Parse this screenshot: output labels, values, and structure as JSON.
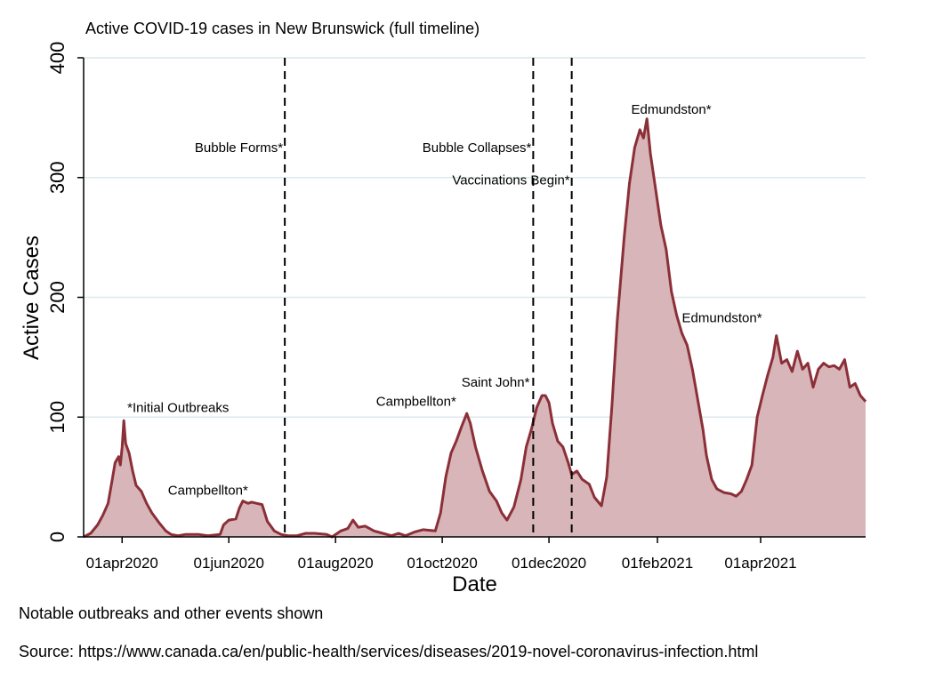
{
  "chart_data": {
    "type": "area",
    "title": "Active COVID-19 cases in New Brunswick (full timeline)",
    "xlabel": "Date",
    "ylabel": "Active Cases",
    "ylim": [
      0,
      400
    ],
    "yticks": [
      0,
      100,
      200,
      300,
      400
    ],
    "xlim": [
      "2020-03-10",
      "2021-05-31"
    ],
    "xticks": [
      {
        "date": "2020-04-01",
        "label": "01apr2020"
      },
      {
        "date": "2020-06-01",
        "label": "01jun2020"
      },
      {
        "date": "2020-08-01",
        "label": "01aug2020"
      },
      {
        "date": "2020-10-01",
        "label": "01oct2020"
      },
      {
        "date": "2020-12-01",
        "label": "01dec2020"
      },
      {
        "date": "2021-02-01",
        "label": "01feb2021"
      },
      {
        "date": "2021-04-01",
        "label": "01apr2021"
      }
    ],
    "grid": true,
    "series": [
      {
        "name": "Active Cases",
        "color": "#8b2f38",
        "fill": "#d8b5b8",
        "points": [
          [
            "2020-03-10",
            0
          ],
          [
            "2020-03-14",
            3
          ],
          [
            "2020-03-18",
            10
          ],
          [
            "2020-03-21",
            18
          ],
          [
            "2020-03-24",
            28
          ],
          [
            "2020-03-26",
            45
          ],
          [
            "2020-03-28",
            62
          ],
          [
            "2020-03-30",
            67
          ],
          [
            "2020-03-31",
            60
          ],
          [
            "2020-04-01",
            75
          ],
          [
            "2020-04-02",
            97
          ],
          [
            "2020-04-03",
            78
          ],
          [
            "2020-04-05",
            70
          ],
          [
            "2020-04-07",
            55
          ],
          [
            "2020-04-09",
            43
          ],
          [
            "2020-04-12",
            38
          ],
          [
            "2020-04-15",
            28
          ],
          [
            "2020-04-18",
            20
          ],
          [
            "2020-04-22",
            12
          ],
          [
            "2020-04-26",
            5
          ],
          [
            "2020-04-29",
            2
          ],
          [
            "2020-05-03",
            1
          ],
          [
            "2020-05-07",
            2
          ],
          [
            "2020-05-15",
            2
          ],
          [
            "2020-05-20",
            1
          ],
          [
            "2020-05-27",
            2
          ],
          [
            "2020-05-29",
            10
          ],
          [
            "2020-06-01",
            14
          ],
          [
            "2020-06-05",
            15
          ],
          [
            "2020-06-07",
            24
          ],
          [
            "2020-06-09",
            30
          ],
          [
            "2020-06-12",
            28
          ],
          [
            "2020-06-14",
            29
          ],
          [
            "2020-06-17",
            28
          ],
          [
            "2020-06-20",
            27
          ],
          [
            "2020-06-23",
            13
          ],
          [
            "2020-06-27",
            5
          ],
          [
            "2020-07-01",
            2
          ],
          [
            "2020-07-05",
            1
          ],
          [
            "2020-07-10",
            1
          ],
          [
            "2020-07-15",
            3
          ],
          [
            "2020-07-20",
            3
          ],
          [
            "2020-07-27",
            2
          ],
          [
            "2020-07-30",
            0
          ],
          [
            "2020-08-04",
            5
          ],
          [
            "2020-08-08",
            7
          ],
          [
            "2020-08-11",
            14
          ],
          [
            "2020-08-14",
            8
          ],
          [
            "2020-08-18",
            9
          ],
          [
            "2020-08-23",
            5
          ],
          [
            "2020-08-28",
            3
          ],
          [
            "2020-09-02",
            1
          ],
          [
            "2020-09-06",
            3
          ],
          [
            "2020-09-10",
            1
          ],
          [
            "2020-09-15",
            4
          ],
          [
            "2020-09-20",
            6
          ],
          [
            "2020-09-27",
            5
          ],
          [
            "2020-09-30",
            20
          ],
          [
            "2020-10-03",
            50
          ],
          [
            "2020-10-06",
            70
          ],
          [
            "2020-10-09",
            80
          ],
          [
            "2020-10-12",
            92
          ],
          [
            "2020-10-15",
            103
          ],
          [
            "2020-10-17",
            95
          ],
          [
            "2020-10-20",
            75
          ],
          [
            "2020-10-24",
            55
          ],
          [
            "2020-10-28",
            38
          ],
          [
            "2020-11-01",
            30
          ],
          [
            "2020-11-04",
            20
          ],
          [
            "2020-11-07",
            14
          ],
          [
            "2020-11-11",
            25
          ],
          [
            "2020-11-15",
            48
          ],
          [
            "2020-11-18",
            75
          ],
          [
            "2020-11-21",
            90
          ],
          [
            "2020-11-24",
            108
          ],
          [
            "2020-11-27",
            118
          ],
          [
            "2020-11-29",
            118
          ],
          [
            "2020-12-01",
            112
          ],
          [
            "2020-12-03",
            95
          ],
          [
            "2020-12-06",
            80
          ],
          [
            "2020-12-09",
            75
          ],
          [
            "2020-12-12",
            62
          ],
          [
            "2020-12-14",
            52
          ],
          [
            "2020-12-17",
            55
          ],
          [
            "2020-12-20",
            48
          ],
          [
            "2020-12-24",
            44
          ],
          [
            "2020-12-27",
            33
          ],
          [
            "2020-12-31",
            26
          ],
          [
            "2021-01-03",
            50
          ],
          [
            "2021-01-06",
            110
          ],
          [
            "2021-01-09",
            180
          ],
          [
            "2021-01-13",
            250
          ],
          [
            "2021-01-16",
            295
          ],
          [
            "2021-01-19",
            325
          ],
          [
            "2021-01-22",
            340
          ],
          [
            "2021-01-24",
            333
          ],
          [
            "2021-01-26",
            349
          ],
          [
            "2021-01-28",
            320
          ],
          [
            "2021-01-31",
            290
          ],
          [
            "2021-02-03",
            260
          ],
          [
            "2021-02-06",
            240
          ],
          [
            "2021-02-09",
            205
          ],
          [
            "2021-02-12",
            185
          ],
          [
            "2021-02-15",
            170
          ],
          [
            "2021-02-18",
            160
          ],
          [
            "2021-02-21",
            140
          ],
          [
            "2021-02-24",
            115
          ],
          [
            "2021-02-27",
            90
          ],
          [
            "2021-03-01",
            68
          ],
          [
            "2021-03-04",
            48
          ],
          [
            "2021-03-07",
            40
          ],
          [
            "2021-03-11",
            37
          ],
          [
            "2021-03-15",
            36
          ],
          [
            "2021-03-18",
            34
          ],
          [
            "2021-03-21",
            38
          ],
          [
            "2021-03-24",
            48
          ],
          [
            "2021-03-27",
            60
          ],
          [
            "2021-03-30",
            100
          ],
          [
            "2021-04-02",
            118
          ],
          [
            "2021-04-05",
            135
          ],
          [
            "2021-04-08",
            150
          ],
          [
            "2021-04-10",
            168
          ],
          [
            "2021-04-13",
            145
          ],
          [
            "2021-04-16",
            148
          ],
          [
            "2021-04-19",
            138
          ],
          [
            "2021-04-22",
            155
          ],
          [
            "2021-04-25",
            140
          ],
          [
            "2021-04-28",
            145
          ],
          [
            "2021-05-01",
            125
          ],
          [
            "2021-05-04",
            140
          ],
          [
            "2021-05-07",
            145
          ],
          [
            "2021-05-10",
            142
          ],
          [
            "2021-05-13",
            143
          ],
          [
            "2021-05-16",
            140
          ],
          [
            "2021-05-19",
            148
          ],
          [
            "2021-05-22",
            125
          ],
          [
            "2021-05-25",
            128
          ],
          [
            "2021-05-28",
            118
          ],
          [
            "2021-05-31",
            113
          ]
        ]
      }
    ],
    "events": [
      {
        "date": "2020-07-03",
        "label": "Bubble Forms*",
        "label_y": 325
      },
      {
        "date": "2020-11-22",
        "label": "Bubble Collapses*",
        "label_y": 325
      },
      {
        "date": "2020-12-14",
        "label": "Vaccinations Begin*",
        "label_y": 298
      }
    ],
    "annotations": [
      {
        "date": "2020-04-04",
        "y": 108,
        "label": "*Initial Outbreaks",
        "anchor": "start"
      },
      {
        "date": "2020-06-12",
        "y": 39,
        "label": "Campbellton*",
        "anchor": "end"
      },
      {
        "date": "2020-10-09",
        "y": 113,
        "label": "Campbellton*",
        "anchor": "end"
      },
      {
        "date": "2020-11-20",
        "y": 129,
        "label": "Saint John*",
        "anchor": "end"
      },
      {
        "date": "2021-01-17",
        "y": 357,
        "label": "Edmundston*",
        "anchor": "start"
      },
      {
        "date": "2021-02-15",
        "y": 183,
        "label": "Edmundston*",
        "anchor": "start"
      }
    ]
  },
  "footer": {
    "note": "Notable outbreaks and other events shown",
    "source": "Source: https://www.canada.ca/en/public-health/services/diseases/2019-novel-coronavirus-infection.html"
  }
}
